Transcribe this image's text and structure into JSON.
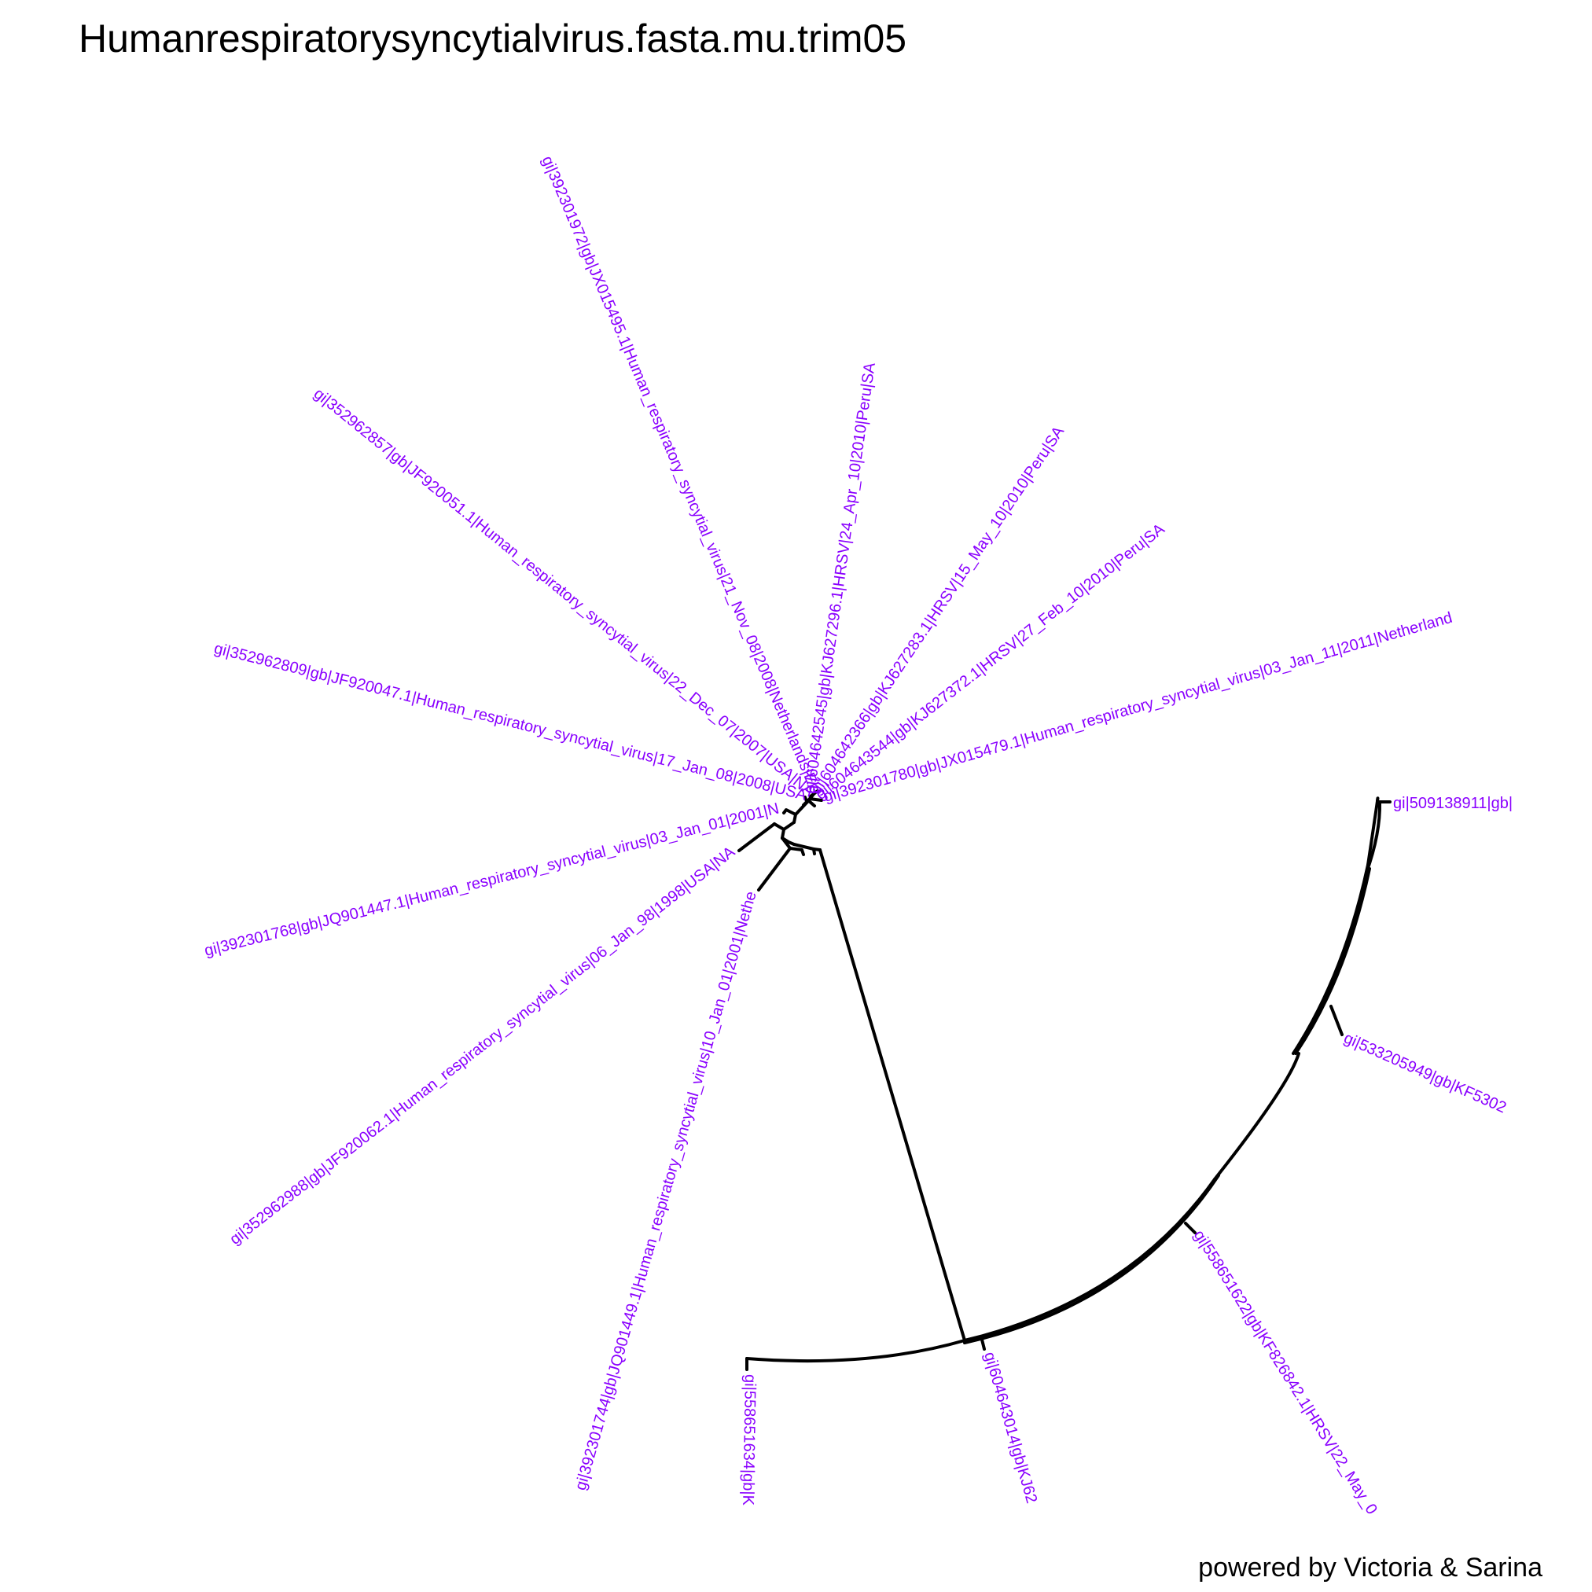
{
  "title": "Humanrespiratorysyncytialvirus.fasta.mu.trim05",
  "caption": "powered by Victoria & Sarina",
  "colors": {
    "tip_label": "#8A00FF",
    "branch": "#000000",
    "background": "#FFFFFF"
  },
  "tree": {
    "layout": "circular",
    "tip_labels": [
      "gi|392301780|gb|JX015479.1|Human_respiratory_syncytial_virus|03_Jan_11|2011|Netherland",
      "gi|604643544|gb|KJ627372.1|HRSV|27_Feb_10|2010|Peru|SA",
      "gi|604642366|gb|KJ627283.1|HRSV|15_May_10|2010|Peru|SA",
      "gi|604642545|gb|KJ627296.1|HRSV|24_Apr_10|2010|Peru|SA",
      "gi|392301972|gb|JX015495.1|Human_respiratory_syncytial_virus|21_Nov_08|2008|Netherlands|EU",
      "gi|352962857|gb|JF920051.1|Human_respiratory_syncytial_virus|22_Dec_07|2007|USA|NA",
      "gi|352962809|gb|JF920047.1|Human_respiratory_syncytial_virus|17_Jan_08|2008|USA",
      "gi|392301768|gb|JQ901447.1|Human_respiratory_syncytial_virus|03_Jan_01|2001|N",
      "gi|352962988|gb|JF920062.1|Human_respiratory_syncytial_virus|06_Jan_98|1998|USA|NA",
      "gi|392301744|gb|JQ901449.1|Human_respiratory_syncytial_virus|10_Jan_01|2001|Nethe",
      "gi|558651634|gb|K",
      "gi|604643014|gb|KJ62",
      "gi|558651622|gb|KF826842.1|HRSV|22_May_0",
      "gi|533205949|gb|KF5302",
      "gi|509138911|gb|"
    ]
  }
}
